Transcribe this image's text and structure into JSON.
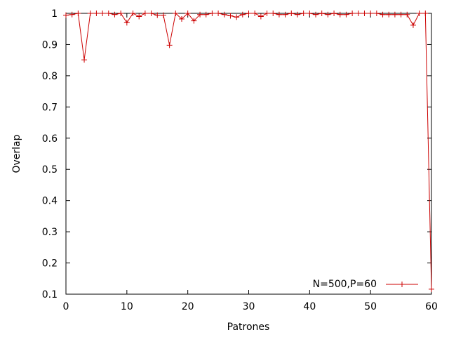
{
  "chart_data": {
    "type": "line",
    "title": "",
    "xlabel": "Patrones",
    "ylabel": "Overlap",
    "xlim": [
      0,
      60
    ],
    "ylim": [
      0.1,
      1
    ],
    "xticks": [
      0,
      10,
      20,
      30,
      40,
      50,
      60
    ],
    "yticks": [
      0.1,
      0.2,
      0.3,
      0.4,
      0.5,
      0.6,
      0.7,
      0.8,
      0.9,
      1
    ],
    "grid": false,
    "legend_position": "bottom-right",
    "series": [
      {
        "name": "N=500,P=60",
        "color": "#cc0000",
        "marker": "plus",
        "x": [
          0,
          1,
          2,
          3,
          4,
          5,
          6,
          7,
          8,
          9,
          10,
          11,
          12,
          13,
          14,
          15,
          16,
          17,
          18,
          19,
          20,
          21,
          22,
          23,
          24,
          25,
          26,
          27,
          28,
          29,
          30,
          31,
          32,
          33,
          34,
          35,
          36,
          37,
          38,
          39,
          40,
          41,
          42,
          43,
          44,
          45,
          46,
          47,
          48,
          49,
          50,
          51,
          52,
          53,
          54,
          55,
          56,
          57,
          58,
          59,
          60
        ],
        "y": [
          0.994,
          0.996,
          1.0,
          0.851,
          1.0,
          1.0,
          1.0,
          1.0,
          0.996,
          1.0,
          0.97,
          1.0,
          0.99,
          1.0,
          1.0,
          0.994,
          0.994,
          0.898,
          1.0,
          0.982,
          1.0,
          0.976,
          0.996,
          0.996,
          1.0,
          1.0,
          0.996,
          0.992,
          0.988,
          0.996,
          1.0,
          1.0,
          0.99,
          1.0,
          1.0,
          0.996,
          0.996,
          1.0,
          0.996,
          1.0,
          1.0,
          0.996,
          1.0,
          0.996,
          1.0,
          0.996,
          0.996,
          1.0,
          1.0,
          1.0,
          1.0,
          1.0,
          0.996,
          0.996,
          0.996,
          0.996,
          0.996,
          0.962,
          1.0,
          1.0,
          0.116
        ]
      }
    ]
  }
}
